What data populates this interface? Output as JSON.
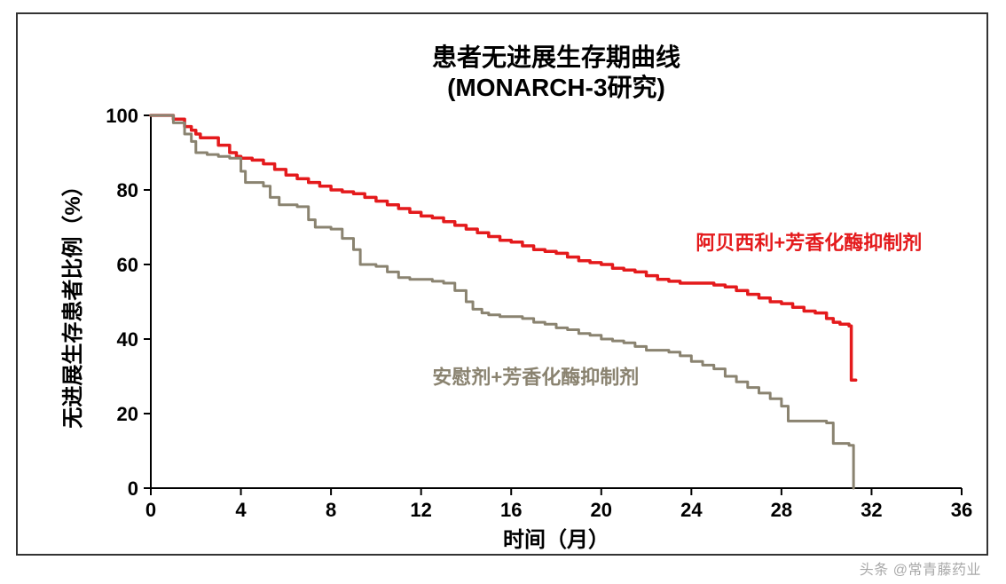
{
  "title_line1": "患者无进展生存期曲线",
  "title_line2": "(MONARCH-3研究)",
  "ylabel": "无进展生存患者比例（%）",
  "xlabel": "时间（月）",
  "watermark": "头条 @常青藤药业",
  "chart": {
    "type": "line",
    "background_color": "#ffffff",
    "border_color": "#333333",
    "axis_color": "#000000",
    "axis_width": 2,
    "tick_length": 8,
    "xlim": [
      0,
      36
    ],
    "ylim": [
      0,
      100
    ],
    "xticks": [
      0,
      4,
      8,
      12,
      16,
      20,
      24,
      28,
      32,
      36
    ],
    "yticks": [
      0,
      20,
      40,
      60,
      80,
      100
    ],
    "title_fontsize": 28,
    "label_fontsize": 24,
    "tick_fontsize": 22,
    "series_label_fontsize": 22,
    "series": [
      {
        "name": "阿贝西利+芳香化酶抑制剂",
        "color": "#e41a1c",
        "line_width": 3.5,
        "label_x": 24.2,
        "label_y": 64,
        "points": [
          [
            0,
            100
          ],
          [
            0.5,
            100
          ],
          [
            1,
            99
          ],
          [
            1.5,
            97
          ],
          [
            1.8,
            96
          ],
          [
            2,
            95
          ],
          [
            2.2,
            94
          ],
          [
            2.5,
            94
          ],
          [
            3,
            92
          ],
          [
            3.5,
            90
          ],
          [
            3.8,
            89
          ],
          [
            4,
            88.5
          ],
          [
            4.5,
            88
          ],
          [
            5,
            87
          ],
          [
            5.5,
            85.5
          ],
          [
            6,
            84
          ],
          [
            6.5,
            83
          ],
          [
            7,
            82
          ],
          [
            7.5,
            81
          ],
          [
            8,
            80
          ],
          [
            8.5,
            79.5
          ],
          [
            9,
            79
          ],
          [
            9.5,
            78
          ],
          [
            10,
            77
          ],
          [
            10.5,
            76
          ],
          [
            11,
            75
          ],
          [
            11.5,
            74
          ],
          [
            12,
            73
          ],
          [
            12.5,
            72.5
          ],
          [
            13,
            71.5
          ],
          [
            13.5,
            70.5
          ],
          [
            14,
            69.5
          ],
          [
            14.5,
            68.5
          ],
          [
            15,
            67.5
          ],
          [
            15.5,
            66.5
          ],
          [
            16,
            66
          ],
          [
            16.5,
            65
          ],
          [
            17,
            64
          ],
          [
            17.5,
            63.5
          ],
          [
            18,
            63
          ],
          [
            18.5,
            62
          ],
          [
            19,
            61
          ],
          [
            19.5,
            60.5
          ],
          [
            20,
            60
          ],
          [
            20.5,
            59
          ],
          [
            21,
            58.5
          ],
          [
            21.5,
            58
          ],
          [
            22,
            57
          ],
          [
            22.5,
            56
          ],
          [
            23,
            55.5
          ],
          [
            23.5,
            55
          ],
          [
            24,
            55
          ],
          [
            24.5,
            55
          ],
          [
            25,
            54.5
          ],
          [
            25.5,
            54
          ],
          [
            26,
            53
          ],
          [
            26.5,
            52
          ],
          [
            27,
            51
          ],
          [
            27.5,
            50
          ],
          [
            28,
            49.5
          ],
          [
            28.5,
            48.5
          ],
          [
            29,
            47.5
          ],
          [
            29.5,
            47
          ],
          [
            30,
            45.5
          ],
          [
            30.3,
            44.5
          ],
          [
            30.6,
            44
          ],
          [
            30.8,
            44
          ],
          [
            31,
            43.5
          ],
          [
            31.1,
            29
          ],
          [
            31.3,
            29
          ]
        ]
      },
      {
        "name": "安慰剂+芳香化酶抑制剂",
        "color": "#8a8370",
        "line_width": 3,
        "label_x": 12.5,
        "label_y": 28,
        "points": [
          [
            0,
            100
          ],
          [
            0.5,
            100
          ],
          [
            1,
            98
          ],
          [
            1.5,
            95
          ],
          [
            1.8,
            93
          ],
          [
            2,
            90
          ],
          [
            2.3,
            90
          ],
          [
            2.5,
            89.5
          ],
          [
            3,
            89
          ],
          [
            3.5,
            88.5
          ],
          [
            4,
            85
          ],
          [
            4.2,
            82
          ],
          [
            4.5,
            82
          ],
          [
            5,
            81
          ],
          [
            5.3,
            78
          ],
          [
            5.7,
            76
          ],
          [
            6,
            76
          ],
          [
            6.5,
            75.5
          ],
          [
            7,
            72
          ],
          [
            7.3,
            70
          ],
          [
            7.7,
            70
          ],
          [
            8,
            69.5
          ],
          [
            8.5,
            67
          ],
          [
            9,
            64
          ],
          [
            9.3,
            60
          ],
          [
            9.7,
            60
          ],
          [
            10,
            59.5
          ],
          [
            10.5,
            58
          ],
          [
            11,
            56.5
          ],
          [
            11.5,
            56
          ],
          [
            12,
            56
          ],
          [
            12.5,
            55.5
          ],
          [
            13,
            55
          ],
          [
            13.5,
            53
          ],
          [
            14,
            50
          ],
          [
            14.3,
            48
          ],
          [
            14.7,
            47
          ],
          [
            15,
            46.5
          ],
          [
            15.5,
            46
          ],
          [
            16,
            46
          ],
          [
            16.5,
            45.5
          ],
          [
            17,
            44.5
          ],
          [
            17.5,
            44
          ],
          [
            18,
            43
          ],
          [
            18.5,
            42.5
          ],
          [
            19,
            41.5
          ],
          [
            19.5,
            41
          ],
          [
            20,
            40
          ],
          [
            20.5,
            39.5
          ],
          [
            21,
            39
          ],
          [
            21.5,
            38
          ],
          [
            22,
            37
          ],
          [
            22.5,
            37
          ],
          [
            23,
            36.5
          ],
          [
            23.5,
            35.5
          ],
          [
            24,
            34
          ],
          [
            24.5,
            33
          ],
          [
            25,
            32
          ],
          [
            25.5,
            30
          ],
          [
            26,
            28.5
          ],
          [
            26.5,
            27
          ],
          [
            27,
            25.5
          ],
          [
            27.5,
            24
          ],
          [
            28,
            22
          ],
          [
            28.3,
            18
          ],
          [
            28.7,
            18
          ],
          [
            29,
            18
          ],
          [
            29.5,
            18
          ],
          [
            30,
            17.5
          ],
          [
            30.3,
            12
          ],
          [
            30.7,
            12
          ],
          [
            31,
            11.5
          ],
          [
            31.2,
            0
          ]
        ]
      }
    ]
  }
}
